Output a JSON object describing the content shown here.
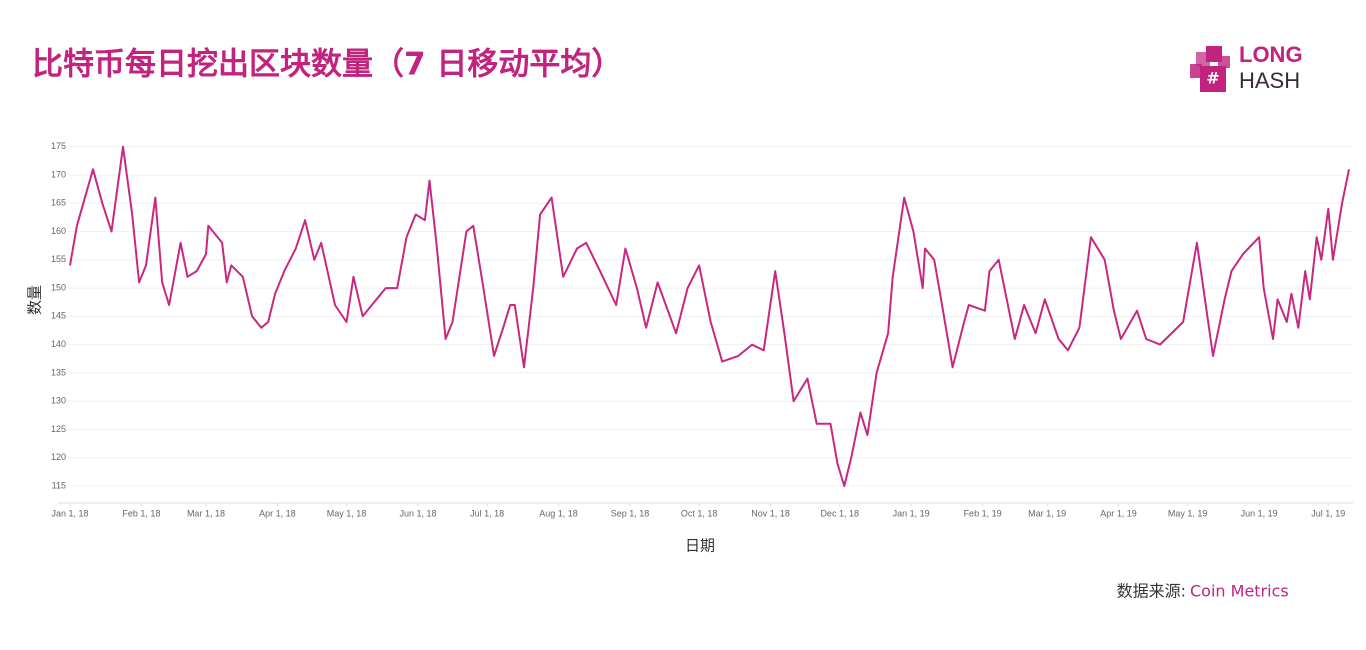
{
  "logo": {
    "top": "LONG",
    "bottom": "HASH"
  },
  "chart_data": {
    "type": "line",
    "title": "比特币每日挖出区块数量（7 日移动平均）",
    "x_label": "日期",
    "y_label": "数量",
    "source_label": "数据来源:",
    "source": "Coin Metrics",
    "color": "#c8287f",
    "grid": true,
    "xlim": [
      "2018-01-01",
      "2019-07-10"
    ],
    "xticks": [
      {
        "value": "2018-01-01",
        "label": "Jan 1, 18"
      },
      {
        "value": "2018-02-01",
        "label": "Feb 1, 18"
      },
      {
        "value": "2018-03-01",
        "label": "Mar 1, 18"
      },
      {
        "value": "2018-04-01",
        "label": "Apr 1, 18"
      },
      {
        "value": "2018-05-01",
        "label": "May 1, 18"
      },
      {
        "value": "2018-06-01",
        "label": "Jun 1, 18"
      },
      {
        "value": "2018-07-01",
        "label": "Jul 1, 18"
      },
      {
        "value": "2018-08-01",
        "label": "Aug 1, 18"
      },
      {
        "value": "2018-09-01",
        "label": "Sep 1, 18"
      },
      {
        "value": "2018-10-01",
        "label": "Oct 1, 18"
      },
      {
        "value": "2018-11-01",
        "label": "Nov 1, 18"
      },
      {
        "value": "2018-12-01",
        "label": "Dec 1, 18"
      },
      {
        "value": "2019-01-01",
        "label": "Jan 1, 19"
      },
      {
        "value": "2019-02-01",
        "label": "Feb 1, 19"
      },
      {
        "value": "2019-03-01",
        "label": "Mar 1, 19"
      },
      {
        "value": "2019-04-01",
        "label": "Apr 1, 19"
      },
      {
        "value": "2019-05-01",
        "label": "May 1, 19"
      },
      {
        "value": "2019-06-01",
        "label": "Jun 1, 19"
      },
      {
        "value": "2019-07-01",
        "label": "Jul 1, 19"
      }
    ],
    "ylim": [
      112,
      176
    ],
    "yticks": [
      115,
      120,
      125,
      130,
      135,
      140,
      145,
      150,
      155,
      160,
      165,
      170,
      175
    ],
    "x": [
      "2018-01-01",
      "2018-01-04",
      "2018-01-11",
      "2018-01-15",
      "2018-01-19",
      "2018-01-24",
      "2018-01-28",
      "2018-01-31",
      "2018-02-03",
      "2018-02-07",
      "2018-02-10",
      "2018-02-13",
      "2018-02-18",
      "2018-02-21",
      "2018-02-25",
      "2018-03-01",
      "2018-03-02",
      "2018-03-08",
      "2018-03-10",
      "2018-03-12",
      "2018-03-17",
      "2018-03-21",
      "2018-03-25",
      "2018-03-28",
      "2018-03-31",
      "2018-04-04",
      "2018-04-09",
      "2018-04-13",
      "2018-04-17",
      "2018-04-20",
      "2018-04-26",
      "2018-05-01",
      "2018-05-04",
      "2018-05-08",
      "2018-05-12",
      "2018-05-18",
      "2018-05-23",
      "2018-05-27",
      "2018-05-31",
      "2018-06-04",
      "2018-06-06",
      "2018-06-09",
      "2018-06-13",
      "2018-06-16",
      "2018-06-22",
      "2018-06-25",
      "2018-06-29",
      "2018-07-04",
      "2018-07-08",
      "2018-07-11",
      "2018-07-13",
      "2018-07-17",
      "2018-07-21",
      "2018-07-24",
      "2018-07-29",
      "2018-08-03",
      "2018-08-09",
      "2018-08-13",
      "2018-08-19",
      "2018-08-26",
      "2018-08-30",
      "2018-09-04",
      "2018-09-08",
      "2018-09-13",
      "2018-09-21",
      "2018-09-26",
      "2018-10-01",
      "2018-10-06",
      "2018-10-11",
      "2018-10-18",
      "2018-10-24",
      "2018-10-29",
      "2018-11-03",
      "2018-11-07",
      "2018-11-11",
      "2018-11-17",
      "2018-11-21",
      "2018-11-27",
      "2018-11-30",
      "2018-12-03",
      "2018-12-06",
      "2018-12-10",
      "2018-12-13",
      "2018-12-17",
      "2018-12-22",
      "2018-12-24",
      "2018-12-29",
      "2019-01-02",
      "2019-01-06",
      "2019-01-07",
      "2019-01-11",
      "2019-01-14",
      "2019-01-19",
      "2019-01-24",
      "2019-01-26",
      "2019-02-02",
      "2019-02-04",
      "2019-02-08",
      "2019-02-15",
      "2019-02-19",
      "2019-02-24",
      "2019-02-28",
      "2019-03-06",
      "2019-03-10",
      "2019-03-15",
      "2019-03-20",
      "2019-03-26",
      "2019-03-30",
      "2019-04-02",
      "2019-04-09",
      "2019-04-13",
      "2019-04-19",
      "2019-04-29",
      "2019-05-05",
      "2019-05-12",
      "2019-05-17",
      "2019-05-20",
      "2019-05-25",
      "2019-06-01",
      "2019-06-03",
      "2019-06-07",
      "2019-06-09",
      "2019-06-13",
      "2019-06-15",
      "2019-06-18",
      "2019-06-21",
      "2019-06-23",
      "2019-06-26",
      "2019-06-28",
      "2019-07-01",
      "2019-07-03",
      "2019-07-07",
      "2019-07-10"
    ],
    "values": [
      154,
      161,
      171,
      165,
      160,
      175,
      163,
      151,
      154,
      166,
      151,
      147,
      158,
      152,
      153,
      156,
      161,
      158,
      151,
      154,
      152,
      145,
      143,
      144,
      149,
      153,
      157,
      162,
      155,
      158,
      147,
      144,
      152,
      145,
      147,
      150,
      150,
      159,
      163,
      162,
      169,
      158,
      141,
      144,
      160,
      161,
      151,
      138,
      143,
      147,
      147,
      136,
      150,
      163,
      166,
      152,
      157,
      158,
      153,
      147,
      157,
      150,
      143,
      151,
      142,
      150,
      154,
      144,
      137,
      138,
      140,
      139,
      153,
      142,
      130,
      134,
      126,
      126,
      119,
      115,
      120,
      128,
      124,
      135,
      142,
      152,
      166,
      160,
      150,
      157,
      155,
      148,
      136,
      144,
      147,
      146,
      153,
      155,
      141,
      147,
      142,
      148,
      141,
      139,
      143,
      159,
      155,
      146,
      141,
      146,
      141,
      140,
      144,
      158,
      138,
      148,
      153,
      156,
      159,
      150,
      141,
      148,
      144,
      149,
      143,
      153,
      148,
      159,
      155,
      164,
      155,
      165,
      171
    ]
  }
}
